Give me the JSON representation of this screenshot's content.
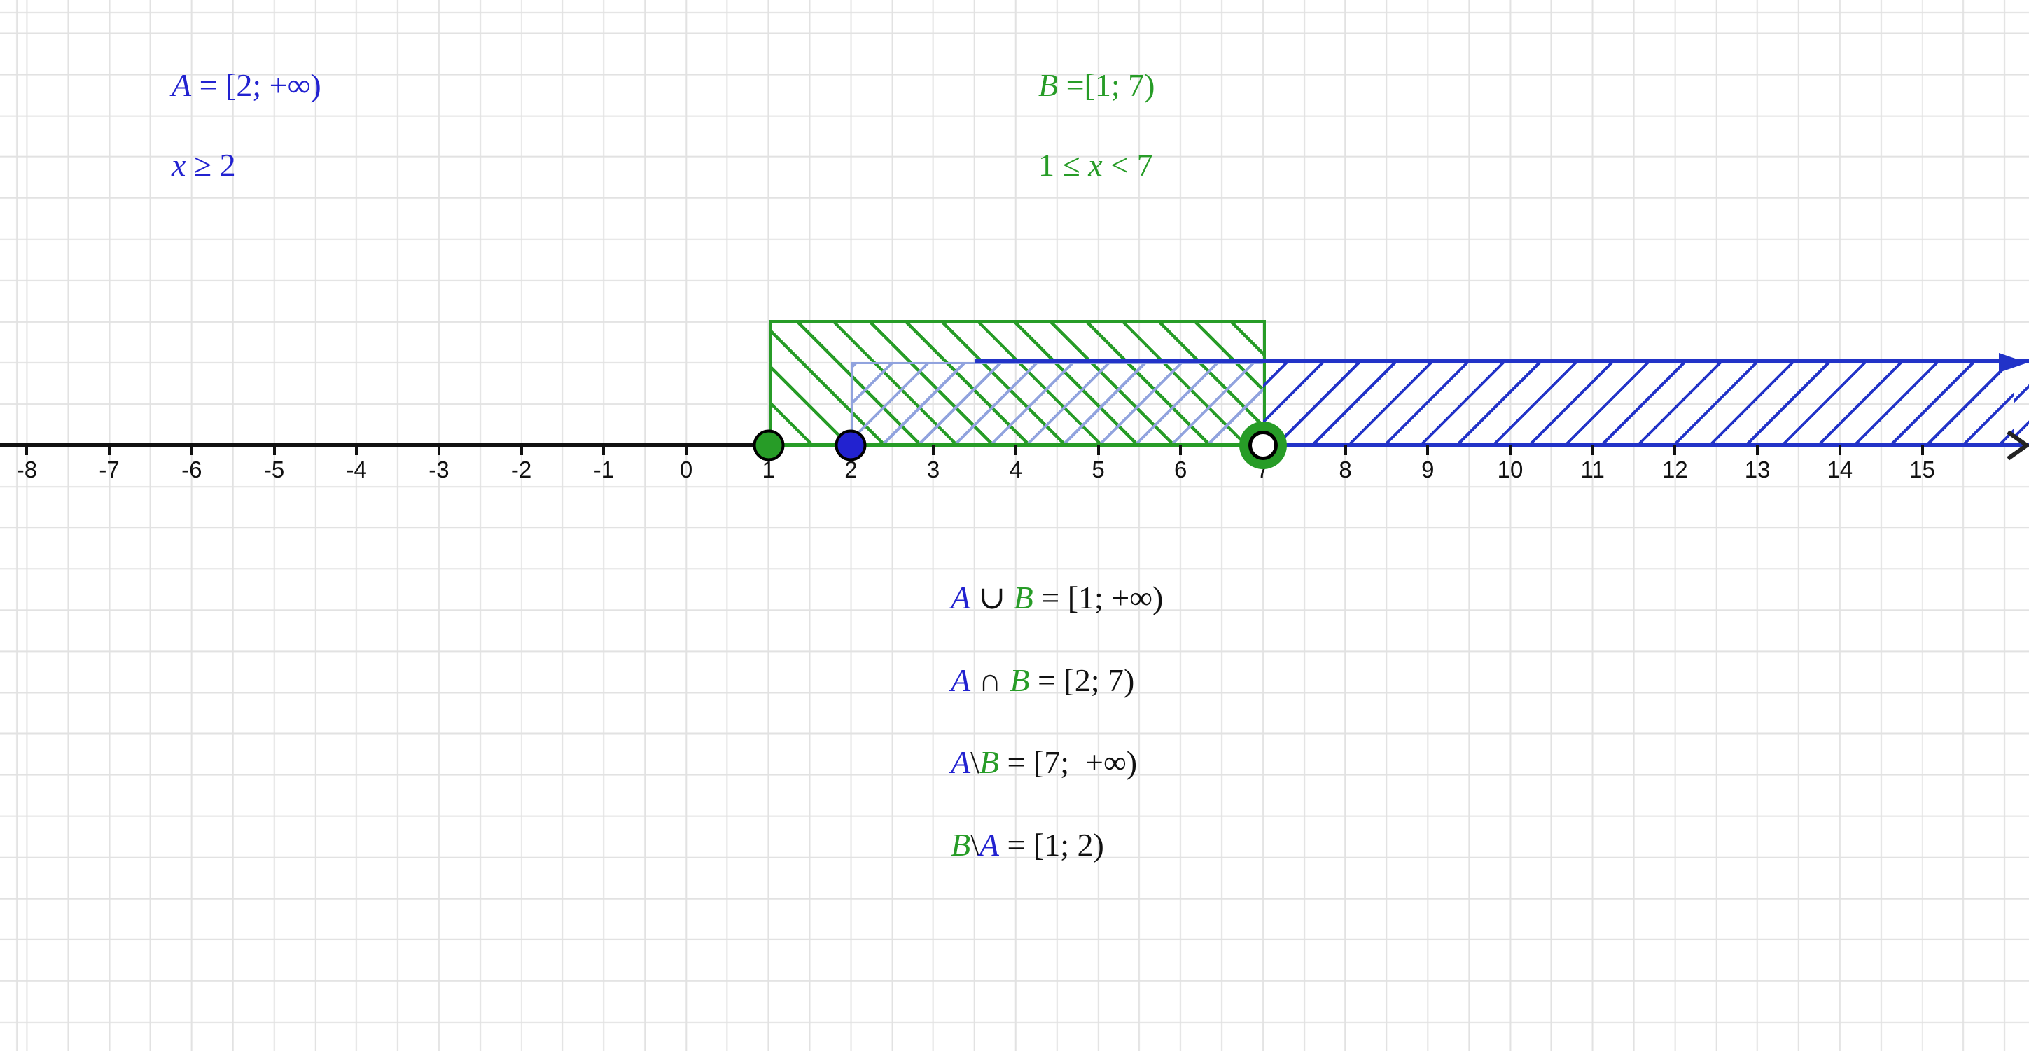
{
  "colors": {
    "blue": "#2222d0",
    "green": "#279c27",
    "light-blue": "#91a3de",
    "dark-blue": "#2233c8",
    "ink": "#111111",
    "grid": "#e2e2e2",
    "bg": "#ffffff"
  },
  "definitions": {
    "set_a": {
      "formula_parts": [
        {
          "t": "A",
          "c": "blue",
          "i": 1
        },
        {
          "t": " = [2; +∞)",
          "c": "blue"
        }
      ],
      "inequality_parts": [
        {
          "t": "x",
          "c": "blue",
          "i": 1
        },
        {
          "t": " ≥ 2",
          "c": "blue"
        }
      ]
    },
    "set_b": {
      "formula_parts": [
        {
          "t": "B",
          "c": "green",
          "i": 1
        },
        {
          "t": " =[1; 7)",
          "c": "green"
        }
      ],
      "inequality_parts": [
        {
          "t": "1 ≤ ",
          "c": "green"
        },
        {
          "t": "x",
          "c": "green",
          "i": 1
        },
        {
          "t": " < 7",
          "c": "green"
        }
      ]
    }
  },
  "operations": {
    "union": {
      "parts": [
        {
          "t": "A",
          "c": "blue",
          "i": 1
        },
        {
          "t": " ∪ ",
          "c": "black"
        },
        {
          "t": "B",
          "c": "green",
          "i": 1
        },
        {
          "t": " = [1; +∞)",
          "c": "black"
        }
      ]
    },
    "intersection": {
      "parts": [
        {
          "t": "A",
          "c": "blue",
          "i": 1
        },
        {
          "t": " ∩ ",
          "c": "black"
        },
        {
          "t": "B",
          "c": "green",
          "i": 1
        },
        {
          "t": " = [2; 7)",
          "c": "black"
        }
      ]
    },
    "a_minus_b": {
      "parts": [
        {
          "t": "A",
          "c": "blue",
          "i": 1
        },
        {
          "t": "\\",
          "c": "black"
        },
        {
          "t": "B",
          "c": "green",
          "i": 1
        },
        {
          "t": " = [7;  +∞)",
          "c": "black"
        }
      ]
    },
    "b_minus_a": {
      "parts": [
        {
          "t": "B",
          "c": "green",
          "i": 1
        },
        {
          "t": "\\",
          "c": "black"
        },
        {
          "t": "A",
          "c": "blue",
          "i": 1
        },
        {
          "t": " = [1; 2)",
          "c": "black"
        }
      ]
    }
  },
  "axis": {
    "ticks": [
      {
        "v": -8,
        "label": "-8"
      },
      {
        "v": -7,
        "label": "-7"
      },
      {
        "v": -6,
        "label": "-6"
      },
      {
        "v": -5,
        "label": "-5"
      },
      {
        "v": -4,
        "label": "-4"
      },
      {
        "v": -3,
        "label": "-3"
      },
      {
        "v": -2,
        "label": "-2"
      },
      {
        "v": -1,
        "label": "-1"
      },
      {
        "v": 0,
        "label": "0"
      },
      {
        "v": 1,
        "label": "1"
      },
      {
        "v": 2,
        "label": "2"
      },
      {
        "v": 3,
        "label": "3"
      },
      {
        "v": 4,
        "label": "4"
      },
      {
        "v": 5,
        "label": "5"
      },
      {
        "v": 6,
        "label": "6"
      },
      {
        "v": 7,
        "label": "7"
      },
      {
        "v": 8,
        "label": "8"
      },
      {
        "v": 9,
        "label": "9"
      },
      {
        "v": 10,
        "label": "10"
      },
      {
        "v": 11,
        "label": "11"
      },
      {
        "v": 12,
        "label": "12"
      },
      {
        "v": 13,
        "label": "13"
      },
      {
        "v": 14,
        "label": "14"
      },
      {
        "v": 15,
        "label": "15"
      }
    ]
  },
  "points": [
    {
      "x": 1,
      "style": "closed",
      "color": "green"
    },
    {
      "x": 2,
      "style": "closed",
      "color": "blue"
    },
    {
      "x": 7,
      "style": "open",
      "color": "green"
    }
  ],
  "sets": {
    "A": {
      "interval": "[2; +∞)",
      "hatch": "blue /"
    },
    "B": {
      "interval": "[1; 7)",
      "hatch": "green \\"
    }
  }
}
